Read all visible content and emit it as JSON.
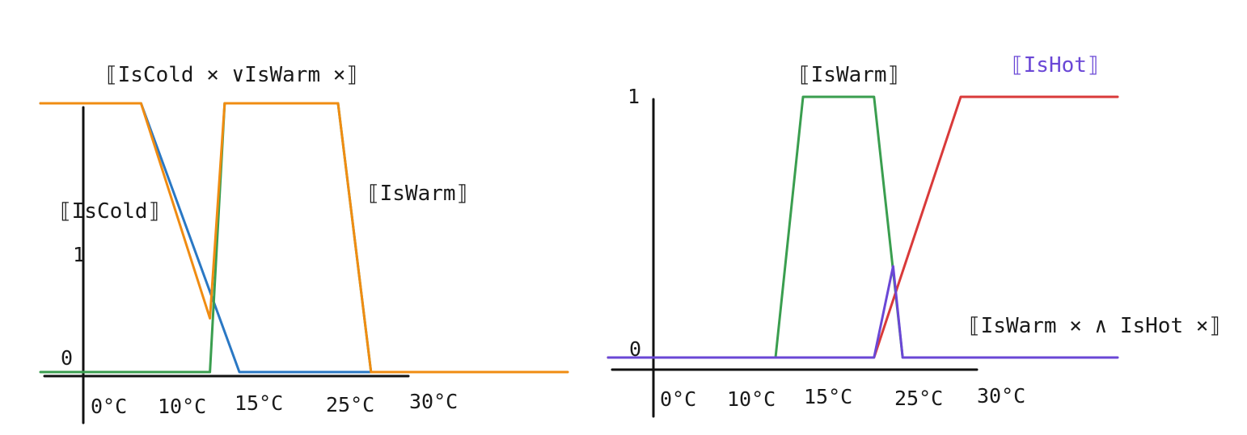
{
  "chart_data": [
    {
      "type": "line",
      "title": "",
      "xlabel": "",
      "ylabel": "",
      "x_ticks": [
        "0°C",
        "10°C",
        "15°C",
        "25°C",
        "30°C"
      ],
      "y_ticks": [
        "0",
        "1"
      ],
      "annotations": [
        "⟦IsCold × ∨IsWarm ×⟧",
        "⟦IsCold⟧",
        "⟦IsWarm⟧"
      ],
      "series": [
        {
          "color": "#2a78c4",
          "x": [
            -5,
            7,
            15,
            34
          ],
          "y": [
            1,
            1,
            0,
            0
          ]
        },
        {
          "color": "#3a9e4f",
          "x": [
            -5,
            13,
            14,
            25,
            27,
            34
          ],
          "y": [
            0,
            0,
            1,
            1,
            0,
            0
          ]
        },
        {
          "color": "#f08c12",
          "x": [
            -5,
            7,
            13,
            14,
            25,
            27,
            36
          ],
          "y": [
            1,
            1,
            0.2,
            1,
            1,
            0,
            0
          ]
        }
      ]
    },
    {
      "type": "line",
      "title": "",
      "xlabel": "",
      "ylabel": "",
      "x_ticks": [
        "0°C",
        "10°C",
        "15°C",
        "25°C",
        "30°C"
      ],
      "y_ticks": [
        "1",
        "0"
      ],
      "annotations": [
        "⟦IsWarm⟧",
        "⟦IsHot⟧",
        "⟦IsWarm × ∧ IsHot ×⟧"
      ],
      "series": [
        {
          "color": "#3a9e4f",
          "x": [
            -3,
            12,
            14,
            21,
            24,
            31
          ],
          "y": [
            0,
            0,
            1,
            1,
            0,
            0
          ]
        },
        {
          "color": "#d93a3a",
          "x": [
            -3,
            21,
            28,
            36
          ],
          "y": [
            0,
            0,
            1,
            1
          ]
        },
        {
          "color": "#6a47d6",
          "x": [
            -3,
            21,
            23,
            24,
            36
          ],
          "y": [
            0,
            0,
            0.35,
            0,
            0
          ]
        }
      ]
    }
  ]
}
